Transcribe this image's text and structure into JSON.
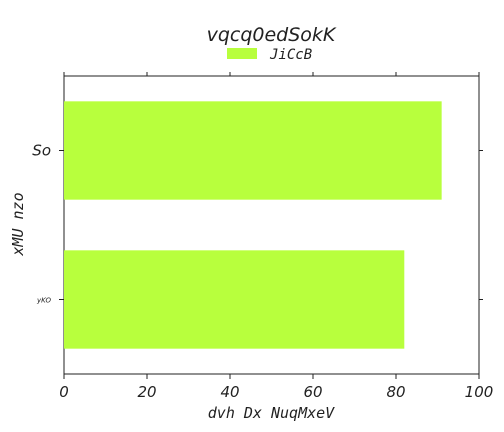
{
  "chart_data": {
    "type": "bar",
    "orientation": "horizontal",
    "title": "vqcq0edSokK",
    "xlabel": "dvh Dx NuqMxeV",
    "ylabel": "xMU nzo",
    "categories": [
      "So",
      "yKO"
    ],
    "series": [
      {
        "name": "JiCcB",
        "values": [
          91,
          82
        ]
      }
    ],
    "xlim": [
      0,
      100
    ],
    "xticks": [
      "0",
      "20",
      "40",
      "60",
      "80",
      "100"
    ],
    "grid": false,
    "legend_position": "top-center",
    "colors": {
      "bar": "#b8ff3d",
      "axis": "#222222",
      "background": "#ffffff"
    }
  }
}
